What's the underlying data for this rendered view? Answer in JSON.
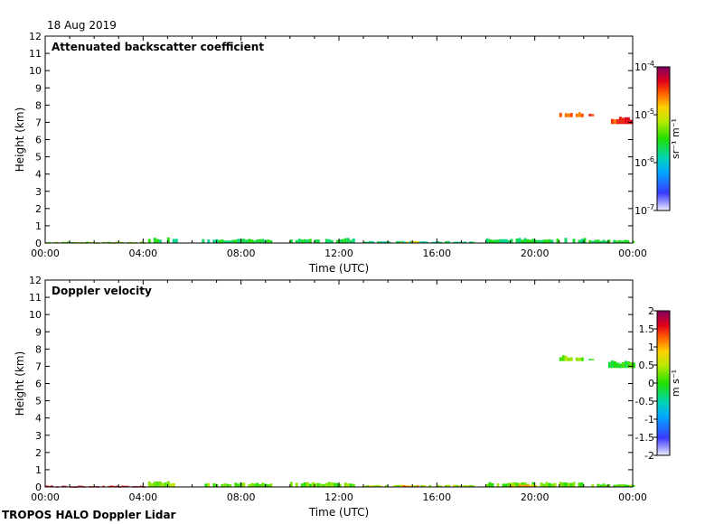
{
  "date_label": "18 Aug 2019",
  "footer": "TROPOS HALO Doppler Lidar",
  "chart_data": [
    {
      "type": "heatmap",
      "title": "Attenuated backscatter coefficient",
      "xlabel": "Time (UTC)",
      "ylabel": "Height (km)",
      "xlim": [
        0,
        24
      ],
      "ylim": [
        0,
        12
      ],
      "x_ticks": [
        "00:00",
        "04:00",
        "08:00",
        "12:00",
        "16:00",
        "20:00",
        "00:00"
      ],
      "y_ticks": [
        "0",
        "1",
        "2",
        "3",
        "4",
        "5",
        "6",
        "7",
        "8",
        "9",
        "10",
        "11",
        "12"
      ],
      "colorbar": {
        "unit": "sr⁻¹ m⁻¹",
        "scale": "log",
        "range": [
          1e-07,
          0.0001
        ],
        "ticks": [
          {
            "value": 0.0001,
            "base": "10",
            "exp": "-4"
          },
          {
            "value": 1e-05,
            "base": "10",
            "exp": "-5"
          },
          {
            "value": 1e-06,
            "base": "10",
            "exp": "-6"
          },
          {
            "value": 1e-07,
            "base": "10",
            "exp": "-7"
          }
        ]
      },
      "features": [
        {
          "t0": 0.0,
          "t1": 4.0,
          "h0": 0.0,
          "h1": 0.08,
          "level": 0.55
        },
        {
          "t0": 4.2,
          "t1": 5.4,
          "h0": 0.0,
          "h1": 0.35,
          "level": 0.45
        },
        {
          "t0": 6.4,
          "t1": 9.2,
          "h0": 0.0,
          "h1": 0.25,
          "level": 0.45
        },
        {
          "t0": 10.0,
          "t1": 12.6,
          "h0": 0.0,
          "h1": 0.3,
          "level": 0.45
        },
        {
          "t0": 13.0,
          "t1": 17.5,
          "h0": 0.0,
          "h1": 0.12,
          "level": 0.4
        },
        {
          "t0": 14.5,
          "t1": 15.2,
          "h0": 0.0,
          "h1": 0.12,
          "level": 0.7
        },
        {
          "t0": 18.0,
          "t1": 22.0,
          "h0": 0.0,
          "h1": 0.3,
          "level": 0.45
        },
        {
          "t0": 22.2,
          "t1": 24.0,
          "h0": 0.0,
          "h1": 0.2,
          "level": 0.45
        },
        {
          "t0": 21.0,
          "t1": 21.9,
          "h0": 7.3,
          "h1": 7.65,
          "level": 0.83
        },
        {
          "t0": 22.2,
          "t1": 22.4,
          "h0": 7.35,
          "h1": 7.5,
          "level": 0.83
        },
        {
          "t0": 23.0,
          "t1": 24.0,
          "h0": 6.9,
          "h1": 7.35,
          "level": 0.85
        }
      ]
    },
    {
      "type": "heatmap",
      "title": "Doppler velocity",
      "xlabel": "Time (UTC)",
      "ylabel": "Height (km)",
      "xlim": [
        0,
        24
      ],
      "ylim": [
        0,
        12
      ],
      "x_ticks": [
        "00:00",
        "04:00",
        "08:00",
        "12:00",
        "16:00",
        "20:00",
        "00:00"
      ],
      "y_ticks": [
        "0",
        "1",
        "2",
        "3",
        "4",
        "5",
        "6",
        "7",
        "8",
        "9",
        "10",
        "11",
        "12"
      ],
      "colorbar": {
        "unit": "m s⁻¹",
        "scale": "linear",
        "range": [
          -2,
          2
        ],
        "ticks": [
          {
            "value": 2,
            "label": "2"
          },
          {
            "value": 1.5,
            "label": "1.5"
          },
          {
            "value": 1,
            "label": "1"
          },
          {
            "value": 0.5,
            "label": "0.5"
          },
          {
            "value": 0,
            "label": "0"
          },
          {
            "value": -0.5,
            "label": "-0.5"
          },
          {
            "value": -1,
            "label": "-1"
          },
          {
            "value": -1.5,
            "label": "-1.5"
          },
          {
            "value": -2,
            "label": "-2"
          }
        ]
      },
      "features": [
        {
          "t0": 0.0,
          "t1": 4.0,
          "h0": 0.0,
          "h1": 0.08,
          "level": 0.9
        },
        {
          "t0": 4.2,
          "t1": 5.4,
          "h0": 0.0,
          "h1": 0.35,
          "level": 0.58
        },
        {
          "t0": 6.4,
          "t1": 9.2,
          "h0": 0.0,
          "h1": 0.25,
          "level": 0.55
        },
        {
          "t0": 10.0,
          "t1": 12.6,
          "h0": 0.0,
          "h1": 0.3,
          "level": 0.55
        },
        {
          "t0": 13.0,
          "t1": 17.5,
          "h0": 0.0,
          "h1": 0.12,
          "level": 0.6
        },
        {
          "t0": 14.5,
          "t1": 15.2,
          "h0": 0.0,
          "h1": 0.12,
          "level": 0.75
        },
        {
          "t0": 18.0,
          "t1": 22.0,
          "h0": 0.0,
          "h1": 0.3,
          "level": 0.55
        },
        {
          "t0": 19.0,
          "t1": 20.0,
          "h0": 0.0,
          "h1": 0.15,
          "level": 0.72
        },
        {
          "t0": 22.2,
          "t1": 24.0,
          "h0": 0.0,
          "h1": 0.2,
          "level": 0.55
        },
        {
          "t0": 21.0,
          "t1": 21.9,
          "h0": 7.3,
          "h1": 7.65,
          "level": 0.56
        },
        {
          "t0": 22.2,
          "t1": 22.4,
          "h0": 7.35,
          "h1": 7.5,
          "level": 0.5
        },
        {
          "t0": 23.0,
          "t1": 24.0,
          "h0": 6.9,
          "h1": 7.35,
          "level": 0.5
        }
      ]
    }
  ]
}
